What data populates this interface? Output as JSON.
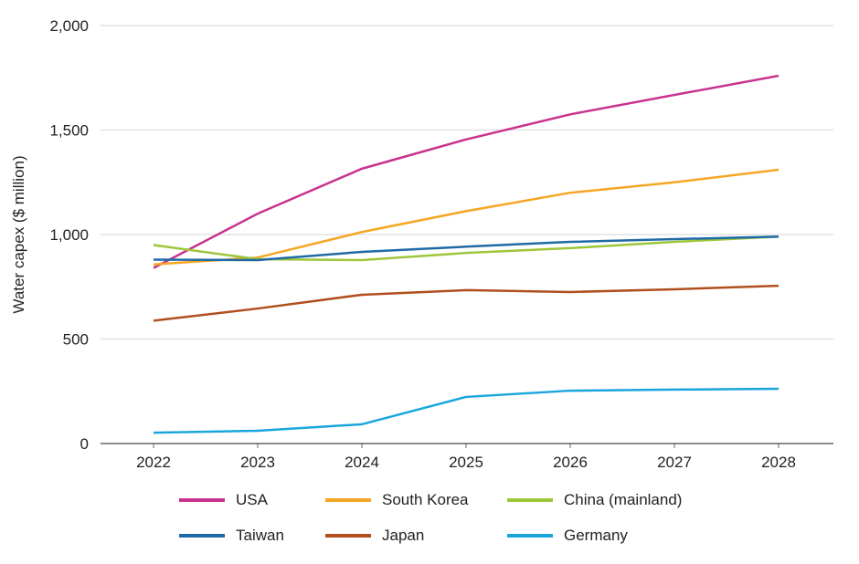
{
  "chart_data": {
    "type": "line",
    "ylabel": "Water capex ($ million)",
    "xlabel": "",
    "categories": [
      "2022",
      "2023",
      "2024",
      "2025",
      "2026",
      "2027",
      "2028"
    ],
    "ylim": [
      0,
      2000
    ],
    "yticks": [
      "0",
      "500",
      "1,000",
      "1,500",
      "2,000"
    ],
    "grid": true,
    "legend": "bottom",
    "series": [
      {
        "name": "USA",
        "color": "#c9338f",
        "values": [
          840,
          1100,
          1315,
          1455,
          1575,
          1668,
          1760
        ]
      },
      {
        "name": "South Korea",
        "color": "#f5a623",
        "values": [
          857,
          890,
          1012,
          1112,
          1200,
          1250,
          1310
        ]
      },
      {
        "name": "China (mainland)",
        "color": "#9dc63b",
        "values": [
          950,
          882,
          878,
          912,
          935,
          965,
          990
        ]
      },
      {
        "name": "Taiwan",
        "color": "#1f6aa5",
        "values": [
          880,
          878,
          917,
          942,
          965,
          978,
          990
        ]
      },
      {
        "name": "Japan",
        "color": "#b04f1d",
        "values": [
          588,
          646,
          712,
          734,
          725,
          738,
          755
        ]
      },
      {
        "name": "Germany",
        "color": "#1aa6dc",
        "values": [
          52,
          61,
          92,
          223,
          253,
          258,
          262
        ]
      }
    ]
  }
}
